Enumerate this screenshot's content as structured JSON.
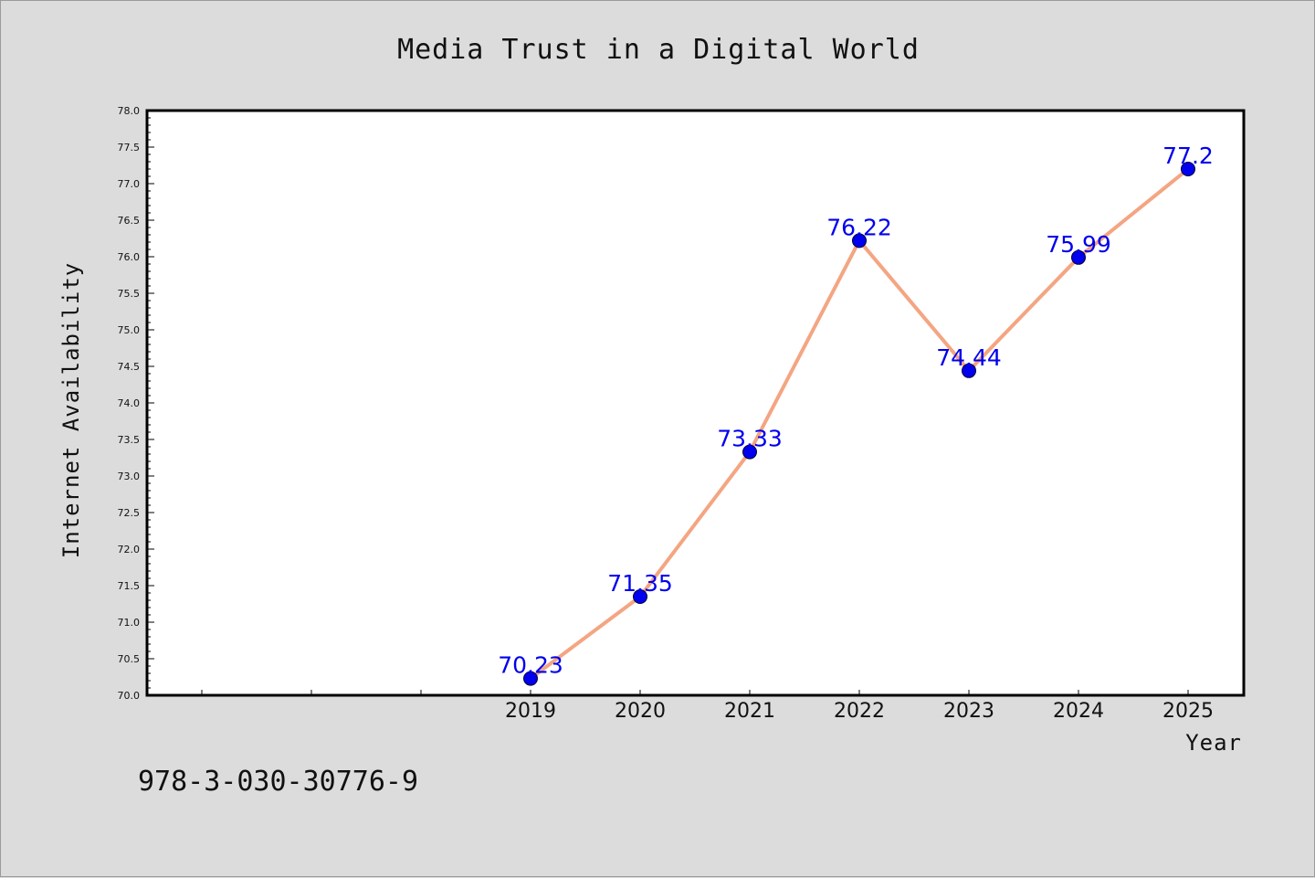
{
  "chart_data": {
    "type": "line",
    "title": "Media Trust in a Digital World",
    "xlabel": "Year",
    "ylabel": "Internet Availability",
    "categories": [
      "2019",
      "2020",
      "2021",
      "2022",
      "2023",
      "2024",
      "2025"
    ],
    "series": [
      {
        "values": [
          70.23,
          71.35,
          73.33,
          76.22,
          74.44,
          75.99,
          77.2
        ],
        "labels": [
          "70.23",
          "71.35",
          "73.33",
          "76.22",
          "74.44",
          "75.99",
          "77.2"
        ]
      }
    ],
    "ylim": [
      70.0,
      78.0
    ],
    "yticks": [
      "70.0",
      "70.5",
      "71.0",
      "71.5",
      "72.0",
      "72.5",
      "73.0",
      "73.5",
      "74.0",
      "74.5",
      "75.0",
      "75.5",
      "76.0",
      "76.5",
      "77.0",
      "77.5",
      "78.0"
    ],
    "grid": false,
    "colors": {
      "line": "#f4a582",
      "marker": "#0000ee",
      "data_label": "#0000ee",
      "plot_bg": "#ffffff",
      "page_bg": "#dcdcdc"
    }
  },
  "footnote": "978-3-030-30776-9"
}
